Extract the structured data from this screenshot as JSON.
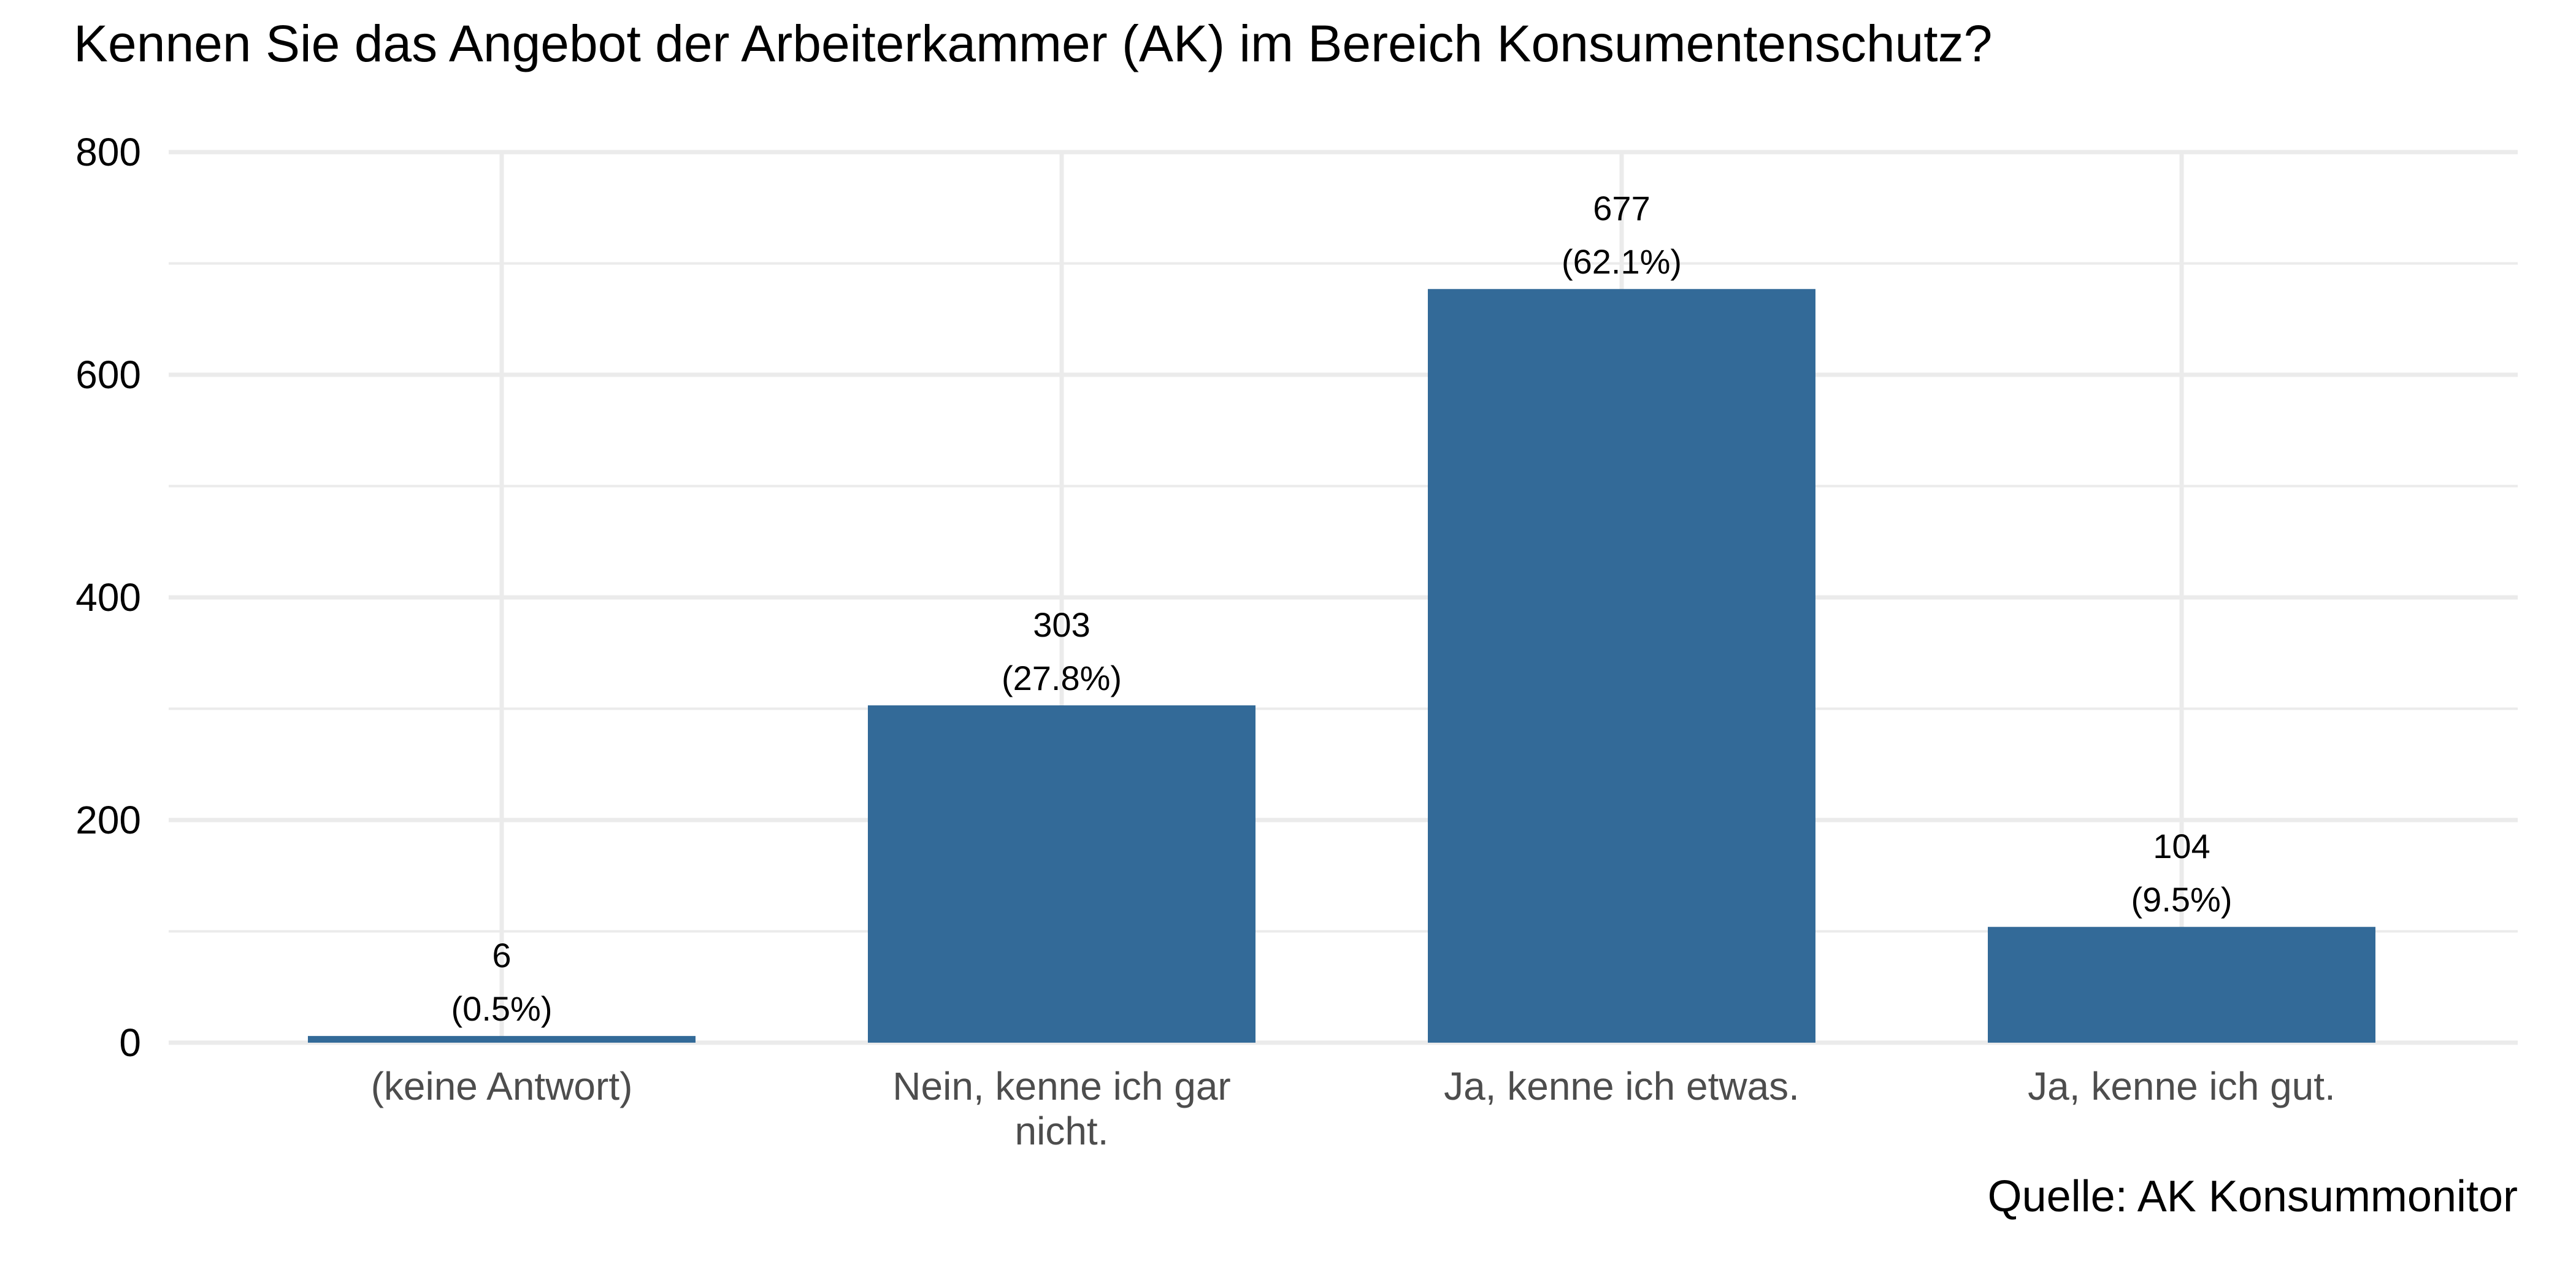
{
  "chart_data": {
    "type": "bar",
    "title": "Kennen Sie das Angebot der Arbeiterkammer (AK) im Bereich Konsumentenschutz?",
    "caption": "Quelle: AK Konsummonitor",
    "xlabel": "",
    "ylabel": "",
    "categories": [
      [
        "(keine Antwort)"
      ],
      [
        "Nein, kenne ich gar",
        "nicht."
      ],
      [
        "Ja, kenne ich etwas."
      ],
      [
        "Ja, kenne ich gut."
      ]
    ],
    "values": [
      6,
      303,
      677,
      104
    ],
    "value_labels": [
      "6",
      "303",
      "677",
      "104"
    ],
    "percent_labels": [
      "(0.5%)",
      "(27.8%)",
      "(62.1%)",
      "(9.5%)"
    ],
    "ylim": [
      0,
      800
    ],
    "yticks": [
      0,
      200,
      400,
      600,
      800
    ],
    "ytick_labels": [
      "0",
      "200",
      "400",
      "600",
      "800"
    ],
    "grid": true,
    "colors": {
      "bar": "#336A98",
      "grid": "#EBEBEB"
    }
  }
}
